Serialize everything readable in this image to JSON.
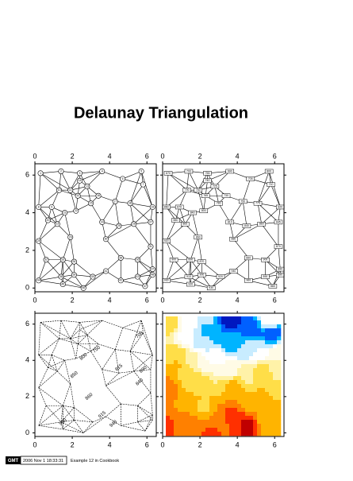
{
  "title": "Delaunay Triangulation",
  "footer": {
    "logo": "GMT",
    "timestamp": "2006 Nov  1 18:33:31",
    "caption": "Example 12 in Cookbook"
  },
  "chart_data": [
    {
      "type": "scatter",
      "xlim": [
        0,
        6.5
      ],
      "ylim": [
        -0.2,
        6.6
      ],
      "xticks": [
        0,
        2,
        4,
        6
      ],
      "yticks": [
        0,
        2,
        4,
        6
      ],
      "x_label_sides": [
        "top",
        "bottom"
      ],
      "y_label_sides": [
        "left"
      ],
      "x": [
        0.3,
        1.4,
        2.4,
        3.6,
        5.7,
        4.7,
        5.8,
        0.2,
        0.9,
        1.3,
        1.9,
        2.3,
        2.8,
        2.4,
        3.0,
        3.4,
        4.3,
        5.1,
        6.3,
        0.7,
        1.6,
        2.2,
        1.2,
        3.6,
        4.5,
        5.3,
        6.2,
        0.2,
        1.9,
        3.8,
        6.2,
        0.6,
        1.5,
        2.1,
        4.6,
        5.5,
        6.3,
        1.4,
        2.1,
        3.1,
        3.8,
        4.6,
        5.5,
        0.2,
        1.5,
        2.6,
        5.9,
        6.3
      ],
      "y": [
        6.1,
        6.2,
        6.1,
        6.2,
        6.2,
        5.8,
        5.5,
        4.3,
        4.3,
        5.2,
        5.2,
        4.9,
        5.4,
        5.7,
        4.5,
        4.9,
        4.6,
        4.5,
        4.3,
        3.6,
        4.0,
        4.1,
        3.4,
        3.5,
        3.3,
        3.4,
        3.5,
        2.5,
        2.7,
        2.6,
        2.2,
        1.5,
        1.5,
        1.4,
        1.6,
        1.5,
        1.0,
        0.6,
        0.7,
        0.6,
        0.9,
        0.4,
        0.6,
        0.4,
        0.2,
        0.0,
        0.1,
        0.7
      ],
      "point_labels": [
        1,
        2,
        3,
        4,
        5,
        6,
        7,
        8,
        9,
        10,
        11,
        12,
        13,
        14,
        15,
        16,
        17,
        18,
        19,
        20,
        21,
        22,
        23,
        24,
        25,
        26,
        27,
        28,
        29,
        30,
        31,
        32,
        33,
        34,
        35,
        36,
        37,
        38,
        39,
        40,
        41,
        42,
        43,
        44,
        45,
        46,
        47,
        48
      ]
    },
    {
      "type": "scatter",
      "xlim": [
        0,
        6.5
      ],
      "ylim": [
        -0.2,
        6.6
      ],
      "xticks": [
        0,
        2,
        4,
        6
      ],
      "yticks": [
        0,
        2,
        4,
        6
      ],
      "x_label_sides": [
        "top",
        "bottom"
      ],
      "y_label_sides": [],
      "x": [
        0.3,
        1.4,
        2.4,
        3.6,
        5.7,
        4.7,
        5.8,
        0.2,
        0.9,
        1.3,
        1.9,
        2.3,
        2.8,
        2.4,
        3.0,
        3.4,
        4.3,
        5.1,
        6.3,
        0.7,
        1.6,
        2.2,
        1.2,
        3.6,
        4.5,
        5.3,
        6.2,
        0.2,
        1.9,
        3.8,
        6.2,
        0.6,
        1.5,
        2.1,
        4.6,
        5.5,
        6.3,
        1.4,
        2.1,
        3.1,
        3.8,
        4.6,
        5.5,
        0.2,
        1.5,
        2.6,
        5.9,
        6.3
      ],
      "y": [
        6.1,
        6.2,
        6.1,
        6.2,
        6.2,
        5.8,
        5.5,
        4.3,
        4.3,
        5.2,
        5.2,
        4.9,
        5.4,
        5.7,
        4.5,
        4.9,
        4.6,
        4.5,
        4.3,
        3.6,
        4.0,
        4.1,
        3.4,
        3.5,
        3.3,
        3.4,
        3.5,
        2.5,
        2.7,
        2.6,
        2.2,
        1.5,
        1.5,
        1.4,
        1.6,
        1.5,
        1.0,
        0.6,
        0.7,
        0.6,
        0.9,
        0.4,
        0.6,
        0.4,
        0.2,
        0.0,
        0.1,
        0.7
      ],
      "values": [
        870,
        793,
        755,
        690,
        800,
        705,
        710,
        860,
        870,
        790,
        760,
        765,
        725,
        740,
        780,
        730,
        750,
        775,
        820,
        880,
        840,
        800,
        865,
        810,
        840,
        860,
        845,
        920,
        860,
        880,
        870,
        900,
        890,
        870,
        890,
        900,
        890,
        910,
        900,
        920,
        940,
        960,
        890,
        930,
        920,
        930,
        880,
        890
      ]
    },
    {
      "type": "contour",
      "xlim": [
        0,
        6.5
      ],
      "ylim": [
        -0.2,
        6.6
      ],
      "xticks": [
        0,
        2,
        4,
        6
      ],
      "yticks": [
        0,
        2,
        4,
        6
      ],
      "x_label_sides": [
        "bottom"
      ],
      "y_label_sides": [
        "left"
      ],
      "labels": [
        {
          "text": "750",
          "x": 3.3,
          "y": 4.6
        },
        {
          "text": "700",
          "x": 5.6,
          "y": 5.4
        },
        {
          "text": "800",
          "x": 2.6,
          "y": 4.2
        },
        {
          "text": "815",
          "x": 4.5,
          "y": 3.6
        },
        {
          "text": "850",
          "x": 2.1,
          "y": 3.2
        },
        {
          "text": "840",
          "x": 5.6,
          "y": 2.8
        },
        {
          "text": "860",
          "x": 2.9,
          "y": 2.0
        },
        {
          "text": "900",
          "x": 1.5,
          "y": 0.6
        },
        {
          "text": "915",
          "x": 3.6,
          "y": 1.0
        },
        {
          "text": "940",
          "x": 4.2,
          "y": 0.5
        },
        {
          "text": "890",
          "x": 5.8,
          "y": 3.5
        }
      ]
    },
    {
      "type": "image",
      "xlim": [
        0,
        6.5
      ],
      "ylim": [
        -0.2,
        6.6
      ],
      "xticks": [
        0,
        2,
        4,
        6
      ],
      "yticks": [
        0,
        2,
        4,
        6
      ],
      "x_label_sides": [
        "bottom"
      ],
      "y_label_sides": [],
      "colormap": [
        {
          "value": 675,
          "color": "#0018c0"
        },
        {
          "value": 700,
          "color": "#0060ff"
        },
        {
          "value": 725,
          "color": "#00b4ff"
        },
        {
          "value": 750,
          "color": "#c8ecff"
        },
        {
          "value": 775,
          "color": "#ffffff"
        },
        {
          "value": 800,
          "color": "#fffbe6"
        },
        {
          "value": 825,
          "color": "#fff2a8"
        },
        {
          "value": 850,
          "color": "#ffde48"
        },
        {
          "value": 875,
          "color": "#ffb400"
        },
        {
          "value": 900,
          "color": "#ff8000"
        },
        {
          "value": 925,
          "color": "#ff3000"
        },
        {
          "value": 950,
          "color": "#c00000"
        }
      ]
    }
  ]
}
